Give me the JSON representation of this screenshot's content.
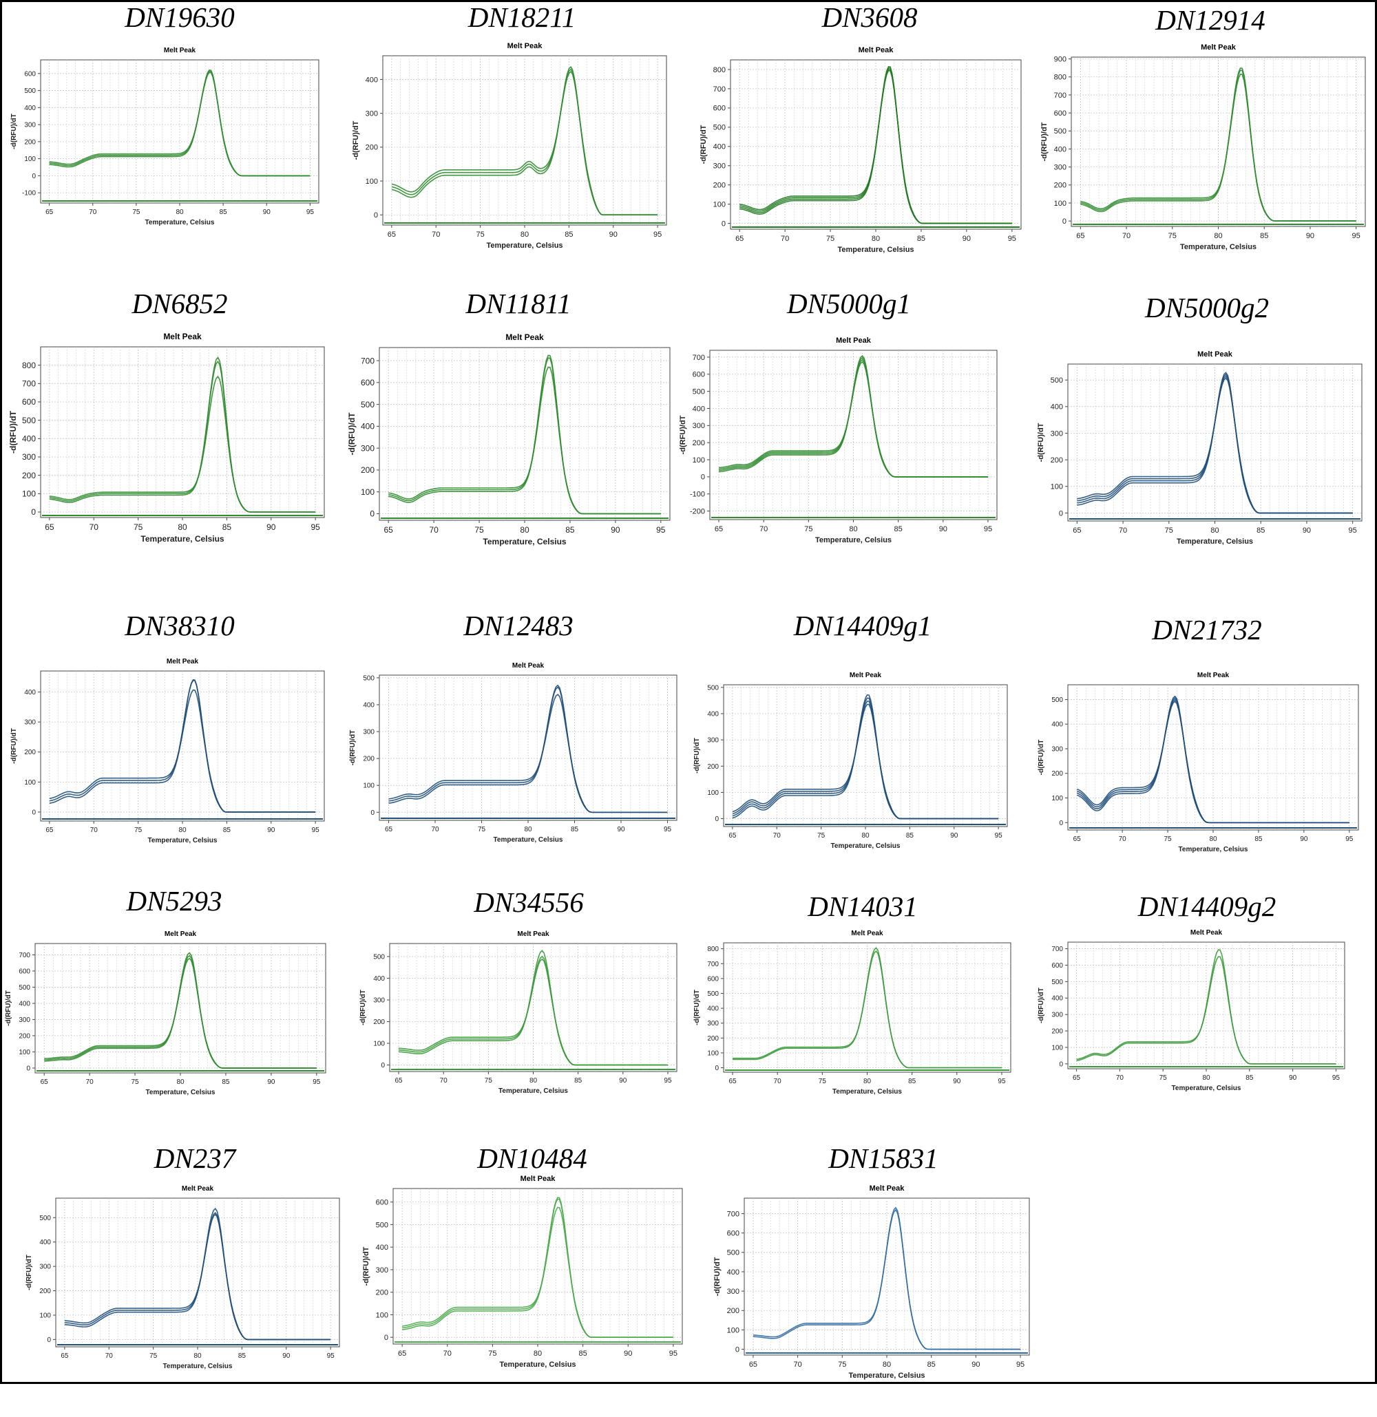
{
  "chart_data": [
    {
      "type": "line",
      "name": "DN19630",
      "title": "Melt Peak",
      "xlabel": "Temperature, Celsius",
      "ylabel": "-d(RFU)/dT",
      "xlim": [
        64,
        96
      ],
      "ylim": [
        -160,
        680
      ],
      "yticks": [
        -100,
        0,
        100,
        200,
        300,
        400,
        500,
        600
      ],
      "xticks": [
        65,
        70,
        75,
        80,
        85,
        90,
        95
      ],
      "color": "#2e8b2e",
      "peak_temp": 83.5,
      "peak_heights": [
        630,
        615,
        600
      ],
      "plateau": 120,
      "baseline_start": 75,
      "replicates": 3
    },
    {
      "type": "line",
      "name": "DN18211",
      "title": "Melt Peak",
      "xlabel": "Temperature, Celsius",
      "ylabel": "-d(RFU)/dT",
      "xlim": [
        64,
        96
      ],
      "ylim": [
        -30,
        470
      ],
      "yticks": [
        0,
        100,
        200,
        300,
        400
      ],
      "xticks": [
        65,
        70,
        75,
        80,
        85,
        90,
        95
      ],
      "color": "#2e8b2e",
      "peak_temp": 85.2,
      "peak_heights": [
        445,
        430,
        415
      ],
      "plateau": 125,
      "shoulder_temp": 80.5,
      "baseline_start": 85,
      "replicates": 3
    },
    {
      "type": "line",
      "name": "DN3608",
      "title": "Melt Peak",
      "xlabel": "Temperature, Celsius",
      "ylabel": "-d(RFU)/dT",
      "xlim": [
        64,
        96
      ],
      "ylim": [
        -30,
        850
      ],
      "yticks": [
        0,
        100,
        200,
        300,
        400,
        500,
        600,
        700,
        800
      ],
      "xticks": [
        65,
        70,
        75,
        80,
        85,
        90,
        95
      ],
      "color": "#1f7a1f",
      "peak_temp": 81.5,
      "peak_heights": [
        830,
        815,
        800,
        785
      ],
      "plateau": 130,
      "baseline_start": 90,
      "replicates": 4
    },
    {
      "type": "line",
      "name": "DN12914",
      "title": "Melt Peak",
      "xlabel": "Temperature, Celsius",
      "ylabel": "-d(RFU)/dT",
      "xlim": [
        64,
        96
      ],
      "ylim": [
        -30,
        910
      ],
      "yticks": [
        0,
        100,
        200,
        300,
        400,
        500,
        600,
        700,
        800,
        900
      ],
      "xticks": [
        65,
        70,
        75,
        80,
        85,
        90,
        95
      ],
      "color": "#2e8b2e",
      "peak_temp": 82.5,
      "peak_heights": [
        860,
        840,
        810
      ],
      "plateau": 120,
      "baseline_start": 105,
      "replicates": 3
    },
    {
      "type": "line",
      "name": "DN6852",
      "title": "Melt Peak",
      "xlabel": "Temperature, Celsius",
      "ylabel": "-d(RFU)/dT",
      "xlim": [
        64,
        96
      ],
      "ylim": [
        -30,
        900
      ],
      "yticks": [
        0,
        100,
        200,
        300,
        400,
        500,
        600,
        700,
        800
      ],
      "xticks": [
        65,
        70,
        75,
        80,
        85,
        90,
        95
      ],
      "color": "#2e8b2e",
      "peak_temp": 84.0,
      "peak_heights": [
        850,
        820,
        730
      ],
      "plateau": 100,
      "baseline_start": 80,
      "replicates": 3
    },
    {
      "type": "line",
      "name": "DN11811",
      "title": "Melt Peak",
      "xlabel": "Temperature, Celsius",
      "ylabel": "-d(RFU)/dT",
      "xlim": [
        64,
        96
      ],
      "ylim": [
        -30,
        760
      ],
      "yticks": [
        0,
        100,
        200,
        300,
        400,
        500,
        600,
        700
      ],
      "xticks": [
        65,
        70,
        75,
        80,
        85,
        90,
        95
      ],
      "color": "#2e8b2e",
      "peak_temp": 82.7,
      "peak_heights": [
        735,
        715,
        665
      ],
      "plateau": 110,
      "baseline_start": 90,
      "replicates": 3
    },
    {
      "type": "line",
      "name": "DN5000g1",
      "title": "Melt Peak",
      "xlabel": "Temperature, Celsius",
      "ylabel": "-d(RFU)/dT",
      "xlim": [
        64,
        96
      ],
      "ylim": [
        -250,
        740
      ],
      "yticks": [
        -200,
        -100,
        0,
        100,
        200,
        300,
        400,
        500,
        600,
        700
      ],
      "xticks": [
        65,
        70,
        75,
        80,
        85,
        90,
        95
      ],
      "color": "#2e8b2e",
      "peak_temp": 81.0,
      "peak_heights": [
        720,
        700,
        680,
        660
      ],
      "plateau": 140,
      "baseline_start": 40,
      "replicates": 4
    },
    {
      "type": "line",
      "name": "DN5000g2",
      "title": "Melt Peak",
      "xlabel": "Temperature, Celsius",
      "ylabel": "-d(RFU)/dT",
      "xlim": [
        64,
        96
      ],
      "ylim": [
        -30,
        560
      ],
      "yticks": [
        0,
        100,
        200,
        300,
        400,
        500
      ],
      "xticks": [
        65,
        70,
        75,
        80,
        85,
        90,
        95
      ],
      "color": "#1f4e79",
      "peak_temp": 81.2,
      "peak_heights": [
        540,
        525,
        510,
        495
      ],
      "plateau": 125,
      "baseline_start": 40,
      "replicates": 4
    },
    {
      "type": "line",
      "name": "DN38310",
      "title": "Melt Peak",
      "xlabel": "Temperature, Celsius",
      "ylabel": "-d(RFU)/dT",
      "xlim": [
        64,
        96
      ],
      "ylim": [
        -30,
        470
      ],
      "yticks": [
        0,
        100,
        200,
        300,
        400
      ],
      "xticks": [
        65,
        70,
        75,
        80,
        85,
        90,
        95
      ],
      "color": "#1f4e79",
      "peak_temp": 81.3,
      "peak_heights": [
        450,
        440,
        400
      ],
      "plateau": 105,
      "baseline_start": 35,
      "replicates": 3
    },
    {
      "type": "line",
      "name": "DN12483",
      "title": "Melt Peak",
      "xlabel": "Temperature, Celsius",
      "ylabel": "-d(RFU)/dT",
      "xlim": [
        64,
        96
      ],
      "ylim": [
        -30,
        510
      ],
      "yticks": [
        0,
        100,
        200,
        300,
        400,
        500
      ],
      "xticks": [
        65,
        70,
        75,
        80,
        85,
        90,
        95
      ],
      "color": "#1f4e79",
      "peak_temp": 83.2,
      "peak_heights": [
        480,
        465,
        430
      ],
      "plateau": 110,
      "baseline_start": 40,
      "replicates": 3
    },
    {
      "type": "line",
      "name": "DN14409g1",
      "title": "Melt Peak",
      "xlabel": "Temperature, Celsius",
      "ylabel": "-d(RFU)/dT",
      "xlim": [
        64,
        96
      ],
      "ylim": [
        -30,
        510
      ],
      "yticks": [
        0,
        100,
        200,
        300,
        400,
        500
      ],
      "xticks": [
        65,
        70,
        75,
        80,
        85,
        90,
        95
      ],
      "color": "#1f4e79",
      "peak_temp": 80.3,
      "peak_heights": [
        485,
        465,
        445,
        425
      ],
      "plateau": 100,
      "baseline_start": 10,
      "replicates": 4
    },
    {
      "type": "line",
      "name": "DN21732",
      "title": "Melt Peak",
      "xlabel": "Temperature, Celsius",
      "ylabel": "-d(RFU)/dT",
      "xlim": [
        64,
        96
      ],
      "ylim": [
        -30,
        560
      ],
      "yticks": [
        0,
        100,
        200,
        300,
        400,
        500
      ],
      "xticks": [
        65,
        70,
        75,
        80,
        85,
        90,
        95
      ],
      "color": "#1f4e79",
      "peak_temp": 75.8,
      "peak_heights": [
        525,
        510,
        495,
        480
      ],
      "plateau": 130,
      "baseline_start": 130,
      "replicates": 4
    },
    {
      "type": "line",
      "name": "DN5293",
      "title": "Melt Peak",
      "xlabel": "Temperature, Celsius",
      "ylabel": "-d(RFU)/dT",
      "xlim": [
        64,
        96
      ],
      "ylim": [
        -30,
        770
      ],
      "yticks": [
        0,
        100,
        200,
        300,
        400,
        500,
        600,
        700
      ],
      "xticks": [
        65,
        70,
        75,
        80,
        85,
        90,
        95
      ],
      "color": "#2e8b2e",
      "peak_temp": 81.0,
      "peak_heights": [
        720,
        695,
        670
      ],
      "plateau": 130,
      "baseline_start": 50,
      "replicates": 3
    },
    {
      "type": "line",
      "name": "DN34556",
      "title": "Melt Peak",
      "xlabel": "Temperature, Celsius",
      "ylabel": "-d(RFU)/dT",
      "xlim": [
        64,
        96
      ],
      "ylim": [
        -30,
        560
      ],
      "yticks": [
        0,
        100,
        200,
        300,
        400,
        500
      ],
      "xticks": [
        65,
        70,
        75,
        80,
        85,
        90,
        95
      ],
      "color": "#3a9a3a",
      "peak_temp": 81.0,
      "peak_heights": [
        535,
        500,
        480
      ],
      "plateau": 120,
      "baseline_start": 70,
      "replicates": 3
    },
    {
      "type": "line",
      "name": "DN14031",
      "title": "Melt Peak",
      "xlabel": "Temperature, Celsius",
      "ylabel": "-d(RFU)/dT",
      "xlim": [
        64,
        96
      ],
      "ylim": [
        -30,
        840
      ],
      "yticks": [
        0,
        100,
        200,
        300,
        400,
        500,
        600,
        700,
        800
      ],
      "xticks": [
        65,
        70,
        75,
        80,
        85,
        90,
        95
      ],
      "color": "#3a9a3a",
      "peak_temp": 81.0,
      "peak_heights": [
        810,
        780
      ],
      "plateau": 135,
      "baseline_start": 60,
      "replicates": 2
    },
    {
      "type": "line",
      "name": "DN14409g2",
      "title": "Melt Peak",
      "xlabel": "Temperature, Celsius",
      "ylabel": "-d(RFU)/dT",
      "xlim": [
        64,
        96
      ],
      "ylim": [
        -30,
        740
      ],
      "yticks": [
        0,
        100,
        200,
        300,
        400,
        500,
        600,
        700
      ],
      "xticks": [
        65,
        70,
        75,
        80,
        85,
        90,
        95
      ],
      "color": "#3a9a3a",
      "peak_temp": 81.5,
      "peak_heights": [
        700,
        650
      ],
      "plateau": 130,
      "baseline_start": 20,
      "replicates": 2
    },
    {
      "type": "line",
      "name": "DN237",
      "title": "Melt Peak",
      "xlabel": "Temperature, Celsius",
      "ylabel": "-d(RFU)/dT",
      "xlim": [
        64,
        96
      ],
      "ylim": [
        -30,
        580
      ],
      "yticks": [
        0,
        100,
        200,
        300,
        400,
        500
      ],
      "xticks": [
        65,
        70,
        75,
        80,
        85,
        90,
        95
      ],
      "color": "#1f4e79",
      "peak_temp": 82.0,
      "peak_heights": [
        545,
        520,
        505
      ],
      "plateau": 120,
      "baseline_start": 70,
      "replicates": 3
    },
    {
      "type": "line",
      "name": "DN10484",
      "title": "Melt Peak",
      "xlabel": "Temperature, Celsius",
      "ylabel": "-d(RFU)/dT",
      "xlim": [
        64,
        96
      ],
      "ylim": [
        -30,
        660
      ],
      "yticks": [
        0,
        100,
        200,
        300,
        400,
        500,
        600
      ],
      "xticks": [
        65,
        70,
        75,
        80,
        85,
        90,
        95
      ],
      "color": "#4caa4c",
      "peak_temp": 82.3,
      "peak_heights": [
        630,
        615,
        570
      ],
      "plateau": 125,
      "baseline_start": 40,
      "replicates": 3
    },
    {
      "type": "line",
      "name": "DN15831",
      "title": "Melt Peak",
      "xlabel": "Temperature, Celsius",
      "ylabel": "-d(RFU)/dT",
      "xlim": [
        64,
        96
      ],
      "ylim": [
        -30,
        780
      ],
      "yticks": [
        0,
        100,
        200,
        300,
        400,
        500,
        600,
        700
      ],
      "xticks": [
        65,
        70,
        75,
        80,
        85,
        90,
        95
      ],
      "color": "#2e6aa0",
      "peak_temp": 81.0,
      "peak_heights": [
        735,
        715
      ],
      "plateau": 130,
      "baseline_start": 70,
      "replicates": 2
    }
  ]
}
